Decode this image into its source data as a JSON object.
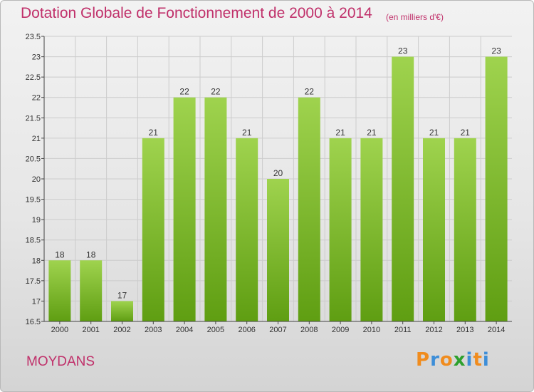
{
  "header": {
    "title": "Dotation Globale de Fonctionnement de 2000 à 2014",
    "subtitle": "(en milliers d'€)"
  },
  "footer": {
    "commune": "MOYDANS",
    "logo_letters": [
      "P",
      "r",
      "o",
      "x",
      "i",
      "t",
      "i"
    ],
    "logo_colors": [
      "#f08c1e",
      "#3d8ed8",
      "#f08c1e",
      "#2da02d",
      "#3d8ed8",
      "#f08c1e",
      "#3d8ed8"
    ]
  },
  "colors": {
    "accent": "#c0306a",
    "bar_top": "#9fd34e",
    "bar_bottom": "#5f9e12",
    "axis": "#444444",
    "grid": "#cccccc"
  },
  "chart_data": {
    "type": "bar",
    "categories": [
      "2000",
      "2001",
      "2002",
      "2003",
      "2004",
      "2005",
      "2006",
      "2007",
      "2008",
      "2009",
      "2010",
      "2011",
      "2012",
      "2013",
      "2014"
    ],
    "values": [
      18,
      18,
      17,
      21,
      22,
      22,
      21,
      20,
      22,
      21,
      21,
      23,
      21,
      21,
      23
    ],
    "value_labels": [
      "18",
      "18",
      "17",
      "21",
      "22",
      "22",
      "21",
      "20",
      "22",
      "21",
      "21",
      "23",
      "21",
      "21",
      "23"
    ],
    "title": "Dotation Globale de Fonctionnement de 2000 à 2014",
    "ylim": [
      16.5,
      23.5
    ],
    "yticks": [
      16.5,
      17,
      17.5,
      18,
      18.5,
      19,
      19.5,
      20,
      20.5,
      21,
      21.5,
      22,
      22.5,
      23,
      23.5
    ],
    "ytick_labels": [
      "16.5",
      "17",
      "17.5",
      "18",
      "18.5",
      "19",
      "19.5",
      "20",
      "20.5",
      "21",
      "21.5",
      "22",
      "22.5",
      "23",
      "23.5"
    ],
    "grid": true,
    "legend": "none"
  }
}
